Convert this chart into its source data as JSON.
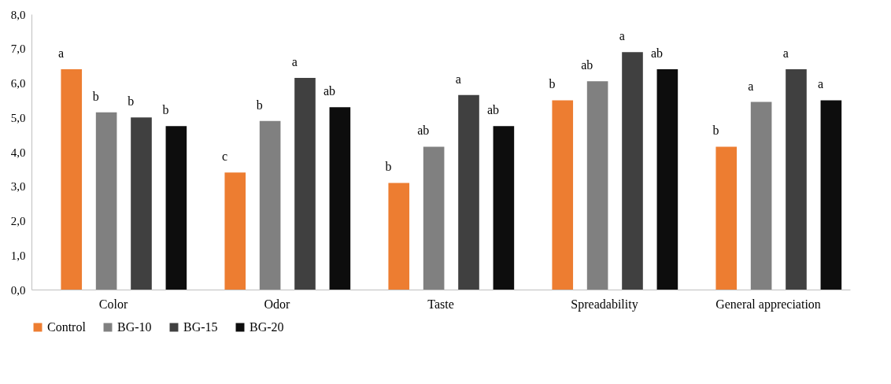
{
  "chart_data": {
    "type": "bar",
    "categories": [
      "Color",
      "Odor",
      "Taste",
      "Spreadability",
      "General appreciation"
    ],
    "series": [
      {
        "name": "Control",
        "color": "#ed7d31",
        "values": [
          6.4,
          3.4,
          3.1,
          5.5,
          4.15
        ],
        "value_labels": [
          "a",
          "c",
          "b",
          "b",
          "b"
        ]
      },
      {
        "name": "BG-10",
        "color": "#808080",
        "values": [
          5.15,
          4.9,
          4.15,
          6.05,
          5.45
        ],
        "value_labels": [
          "b",
          "b",
          "ab",
          "ab",
          "a"
        ]
      },
      {
        "name": "BG-15",
        "color": "#404040",
        "values": [
          5.0,
          6.15,
          5.65,
          6.9,
          6.4
        ],
        "value_labels": [
          "b",
          "a",
          "a",
          "a",
          "a"
        ]
      },
      {
        "name": "BG-20",
        "color": "#0d0d0d",
        "values": [
          4.75,
          5.3,
          4.75,
          6.4,
          5.5
        ],
        "value_labels": [
          "b",
          "ab",
          "ab",
          "ab",
          "a"
        ]
      }
    ],
    "ylim": [
      0,
      8
    ],
    "yticks": [
      {
        "value": 0,
        "label": "0,0"
      },
      {
        "value": 1,
        "label": "1,0"
      },
      {
        "value": 2,
        "label": "2,0"
      },
      {
        "value": 3,
        "label": "3,0"
      },
      {
        "value": 4,
        "label": "4,0"
      },
      {
        "value": 5,
        "label": "5,0"
      },
      {
        "value": 6,
        "label": "6,0"
      },
      {
        "value": 7,
        "label": "7,0"
      },
      {
        "value": 8,
        "label": "8,0"
      }
    ],
    "grid": false,
    "legend": "bottom"
  }
}
